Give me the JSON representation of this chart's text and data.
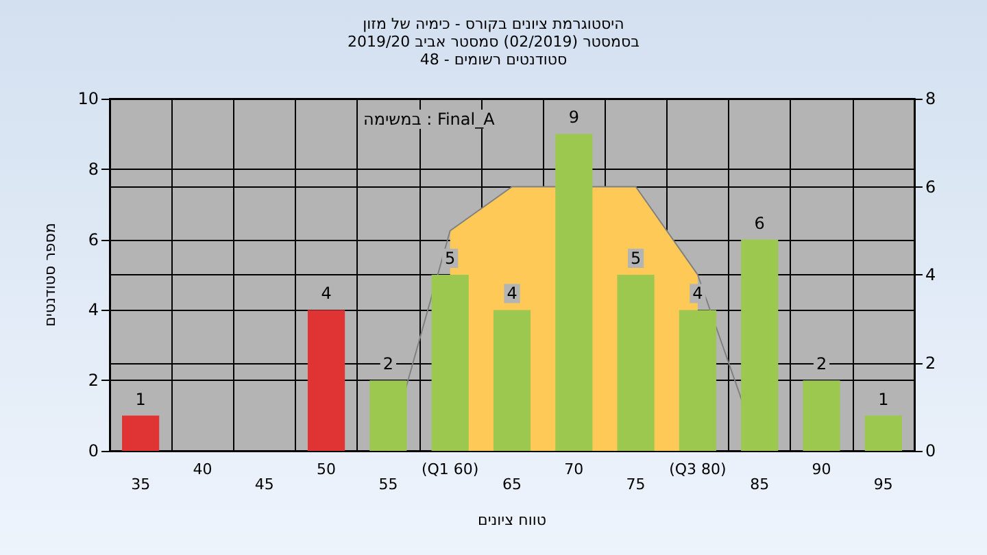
{
  "chart_data": {
    "type": "bar",
    "title": "היסטוגרמת ציונים בקורס - כימיה של מזון",
    "subtitle": "בסמסטר (02/2019) סמסטר אביב 2019/20\nסטודנטים רשומים - 48",
    "xlabel": "טווח ציונים",
    "ylabel": "מספר סטודנטים",
    "annotations": [
      "במשימה : Final_A"
    ],
    "categories": [
      "35",
      "40",
      "45",
      "50",
      "55",
      "(Q1 60)",
      "65",
      "70",
      "75",
      "(Q3 80)",
      "85",
      "90",
      "95"
    ],
    "series": [
      {
        "values": [
          1,
          0,
          0,
          4,
          2,
          5,
          4,
          9,
          5,
          4,
          6,
          2,
          1
        ],
        "colors": [
          "#e03434",
          "#9cc850",
          "#9cc850",
          "#e03434",
          "#9cc850",
          "#9cc850",
          "#9cc850",
          "#9cc850",
          "#9cc850",
          "#9cc850",
          "#9cc850",
          "#9cc850",
          "#9cc850"
        ],
        "value_labels": [
          "1",
          null,
          null,
          "4",
          "2",
          "5",
          "4",
          "9",
          "5",
          "4",
          "6",
          "2",
          "1"
        ]
      },
      {
        "type": "area",
        "axis": "y2",
        "color": "#ffc957",
        "values": [
          null,
          null,
          null,
          null,
          null,
          5,
          6,
          null,
          6,
          4,
          null,
          null,
          null
        ]
      },
      {
        "type": "line",
        "axis": "y2",
        "color": "#808080",
        "values": [
          null,
          null,
          null,
          null,
          0,
          5,
          6,
          null,
          6,
          4,
          0,
          null,
          null
        ]
      }
    ],
    "ylim": [
      0,
      10
    ],
    "yticks": [
      0,
      2,
      4,
      6,
      8,
      10
    ],
    "y2lim": [
      0,
      8
    ],
    "y2ticks": [
      0,
      2,
      4,
      6,
      8
    ],
    "grid": true
  }
}
